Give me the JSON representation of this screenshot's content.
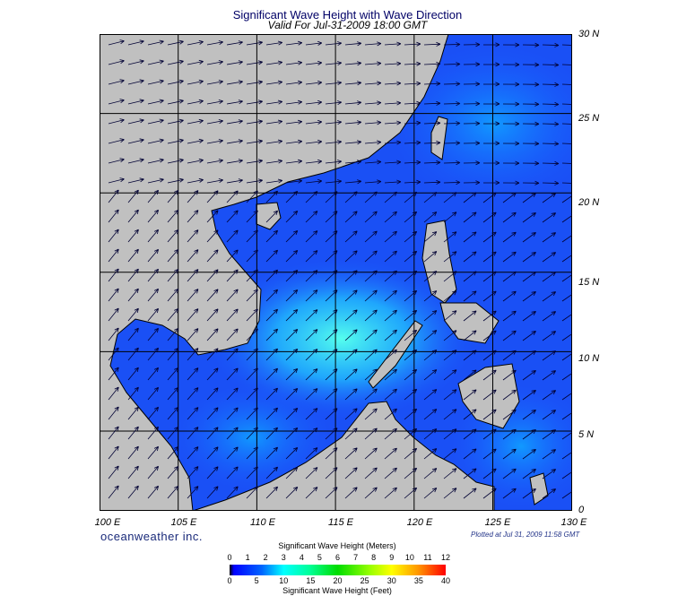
{
  "title": "Significant Wave Height with Wave Direction",
  "subtitle": "Valid For Jul-31-2009 18:00 GMT",
  "lon_labels": [
    "100 E",
    "105 E",
    "110 E",
    "115 E",
    "120 E",
    "125 E",
    "130 E"
  ],
  "lat_labels": [
    "0",
    "5 N",
    "10 N",
    "15 N",
    "20 N",
    "25 N",
    "30 N"
  ],
  "brand": "oceanweather inc.",
  "plotted": "Plotted at Jul 31, 2009 11:58 GMT",
  "colorbar": {
    "meters_title": "Significant Wave Height (Meters)",
    "feet_title": "Significant Wave Height (Feet)",
    "meters_ticks": [
      "0",
      "1",
      "2",
      "3",
      "4",
      "5",
      "6",
      "7",
      "8",
      "9",
      "10",
      "11",
      "12"
    ],
    "feet_ticks": [
      "0",
      "5",
      "10",
      "15",
      "20",
      "25",
      "30",
      "35",
      "40"
    ]
  },
  "colors": {
    "land": "#c0c0c0",
    "ocean": "#1a55ff",
    "accent": "#000066"
  }
}
